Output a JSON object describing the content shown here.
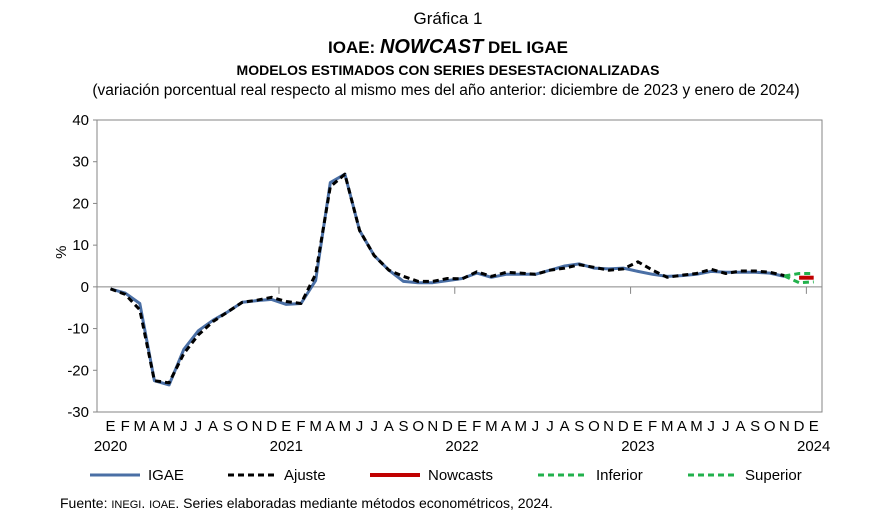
{
  "title": {
    "line1": "Gráfica 1",
    "line2_prefix": "IOAE: ",
    "line2_italic": "NOWCAST",
    "line2_suffix": " DEL IGAE",
    "line3": "MODELOS ESTIMADOS CON SERIES DESESTACIONALIZADAS",
    "line4": "(variación porcentual real respecto al mismo mes del año anterior: diciembre de 2023 y enero de 2024)"
  },
  "source": {
    "prefix": "Fuente: ",
    "inegi": "INEGI",
    "sep": ". ",
    "ioae": "IOAE",
    "rest": ". Series elaboradas mediante métodos econométricos, 2024."
  },
  "chart_data": {
    "type": "line",
    "ylabel": "%",
    "ylim": [
      -30,
      40
    ],
    "yticks": [
      40,
      30,
      20,
      10,
      0,
      -10,
      -20,
      -30
    ],
    "grid": false,
    "legend_position": "bottom",
    "month_labels": [
      "E",
      "F",
      "M",
      "A",
      "M",
      "J",
      "J",
      "A",
      "S",
      "O",
      "N",
      "D",
      "E",
      "F",
      "M",
      "A",
      "M",
      "J",
      "J",
      "A",
      "S",
      "O",
      "N",
      "D",
      "E",
      "F",
      "M",
      "A",
      "M",
      "J",
      "J",
      "A",
      "S",
      "O",
      "N",
      "D",
      "E",
      "F",
      "M",
      "A",
      "M",
      "J",
      "J",
      "A",
      "S",
      "O",
      "N",
      "D",
      "E"
    ],
    "year_labels": [
      {
        "index": 0,
        "label": "2020"
      },
      {
        "index": 12,
        "label": "2021"
      },
      {
        "index": 24,
        "label": "2022"
      },
      {
        "index": 36,
        "label": "2023"
      },
      {
        "index": 48,
        "label": "2024"
      }
    ],
    "colors": {
      "IGAE": "#4a6fa5",
      "Ajuste": "#000000",
      "Nowcasts": "#c00000",
      "Inferior": "#22b14c",
      "Superior": "#22b14c",
      "axis": "#868686"
    },
    "series": [
      {
        "name": "IGAE",
        "style": "solid",
        "start": 0,
        "values": [
          -0.5,
          -1.5,
          -4,
          -22.5,
          -23.5,
          -15,
          -10.5,
          -8,
          -6,
          -3.7,
          -3.3,
          -3,
          -4.2,
          -4,
          1.5,
          25,
          27,
          13.5,
          7.5,
          4,
          1.3,
          1,
          1,
          1.5,
          2,
          3.3,
          2.3,
          3,
          3,
          3,
          4,
          5,
          5.5,
          4.5,
          4.3,
          4.5,
          3.7,
          3,
          2.5,
          2.7,
          3,
          3.7,
          3.5,
          3.5,
          3.5,
          3.3,
          2.5
        ]
      },
      {
        "name": "Ajuste",
        "style": "dashed",
        "start": 0,
        "values": [
          -0.5,
          -1.8,
          -5.5,
          -22.5,
          -23,
          -16,
          -11.5,
          -8.3,
          -6,
          -3.7,
          -3.2,
          -2.5,
          -3.5,
          -4,
          3,
          24,
          27,
          13.5,
          7.5,
          4,
          2.5,
          1.3,
          1.3,
          2,
          1.9,
          3.6,
          2.5,
          3.5,
          3.3,
          3,
          4,
          4.5,
          5.3,
          4.7,
          4,
          4.3,
          6,
          4,
          2.3,
          2.8,
          3.2,
          4.2,
          3.2,
          3.8,
          3.8,
          3.5,
          2.7
        ]
      },
      {
        "name": "Nowcasts",
        "style": "solid",
        "start": 47,
        "values": [
          2.2,
          2.2
        ]
      },
      {
        "name": "Inferior",
        "style": "dashed",
        "start": 46,
        "values": [
          2.6,
          1.0,
          1.2
        ]
      },
      {
        "name": "Superior",
        "style": "dashed",
        "start": 46,
        "values": [
          2.6,
          3.2,
          3.2
        ]
      }
    ]
  }
}
